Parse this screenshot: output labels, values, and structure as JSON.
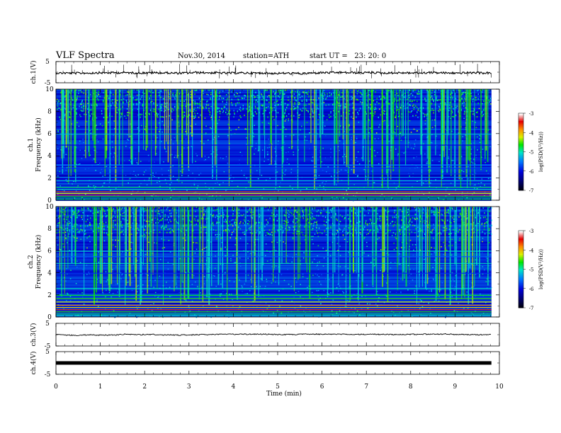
{
  "header": {
    "title": "VLF Spectra",
    "date": "Nov.30, 2014",
    "station": "station=ATH",
    "start": "start UT =   23: 20: 0"
  },
  "chart_data": [
    {
      "type": "line",
      "ylabel": "ch.1(V)",
      "ylim": [
        -5,
        5
      ],
      "yticks": [
        "5",
        "-5"
      ],
      "xlim": [
        0,
        10
      ],
      "baseline": 0,
      "noise": "moderate with spikes"
    },
    {
      "type": "heatmap",
      "ylabel": "Frequency (kHz)",
      "channel_label": "ch.1",
      "ylim": [
        0,
        10
      ],
      "yticks": [
        "0",
        "2",
        "4",
        "6",
        "8",
        "10"
      ],
      "colorbar": {
        "label": "log(PSD(V²/Hz))",
        "range": [
          -7,
          -3
        ],
        "ticks": [
          "-3",
          "-4",
          "-5",
          "-6",
          "-7"
        ]
      }
    },
    {
      "type": "heatmap",
      "ylabel": "Frequency (kHz)",
      "channel_label": "ch.2",
      "ylim": [
        0,
        10
      ],
      "yticks": [
        "0",
        "2",
        "4",
        "6",
        "8",
        "10"
      ],
      "colorbar": {
        "label": "log(PSD(V²/Hz))",
        "range": [
          -7,
          -3
        ],
        "ticks": [
          "-3",
          "-4",
          "-5",
          "-6",
          "-7"
        ]
      }
    },
    {
      "type": "line",
      "ylabel": "ch.3(V)",
      "ylim": [
        -5,
        5
      ],
      "yticks": [
        "5",
        "-5"
      ],
      "baseline": 0,
      "noise": "small"
    },
    {
      "type": "line",
      "ylabel": "ch.4(V)",
      "ylim": [
        -5,
        5
      ],
      "yticks": [
        "5",
        "-5"
      ],
      "baseline": 0,
      "noise": "flat thick"
    }
  ],
  "xaxis": {
    "label": "Time (min)",
    "range": [
      0,
      10
    ],
    "ticks": [
      "0",
      "1",
      "2",
      "3",
      "4",
      "5",
      "6",
      "7",
      "8",
      "9",
      "10"
    ],
    "data_end": 9.82
  }
}
